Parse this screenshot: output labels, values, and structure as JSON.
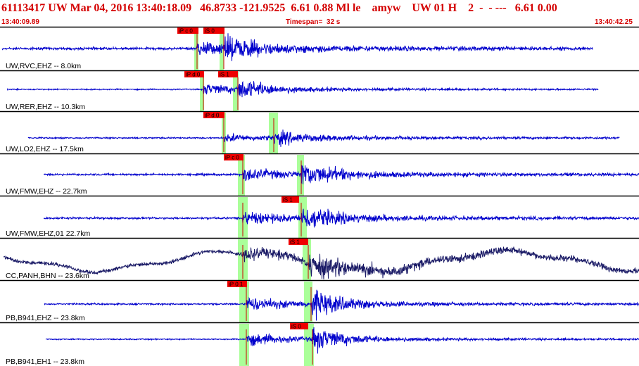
{
  "header": {
    "title": "61113417 UW Mar 04, 2016 13:40:18.09   46.8733 -121.9525  6.61 0.88 Ml le    amyw    UW 01 H    2  -  - ---   6.61 0.00",
    "start_time": "13:40:09.89",
    "timespan": "Timespan=  32 s",
    "end_time": "13:40:42.25"
  },
  "colors": {
    "header_text": "#d40000",
    "trace": "#0000cc",
    "trace_dark": "#1a1a66",
    "pick_box": "#ee0000",
    "window_green": "#aaff99",
    "divider": "#000000"
  },
  "channels": [
    {
      "label": "UW,RVC,EHZ -- 8.0km",
      "picks": [
        {
          "text": "iP c 0"
        },
        {
          "text": "iS 0"
        }
      ]
    },
    {
      "label": "UW,RER,EHZ -- 10.3km",
      "picks": [
        {
          "text": "iP d 0"
        },
        {
          "text": "iS 1"
        }
      ]
    },
    {
      "label": "UW,LO2,EHZ -- 17.5km",
      "picks": [
        {
          "text": "iP d 0"
        }
      ]
    },
    {
      "label": "UW,FMW,EHZ -- 22.7km",
      "picks": [
        {
          "text": "iP c 0"
        }
      ]
    },
    {
      "label": "UW,FMW,EHZ,01 22.7km",
      "picks": [
        {
          "text": "iS 1"
        }
      ]
    },
    {
      "label": "CC,PANH,BHN -- 23.6km",
      "picks": [
        {
          "text": "iS 1"
        }
      ]
    },
    {
      "label": "PB,B941,EHZ -- 23.8km",
      "picks": [
        {
          "text": "iP 0 1"
        }
      ]
    },
    {
      "label": "PB,B941,EH1 -- 23.8km",
      "picks": [
        {
          "text": "iS 0"
        }
      ]
    }
  ]
}
